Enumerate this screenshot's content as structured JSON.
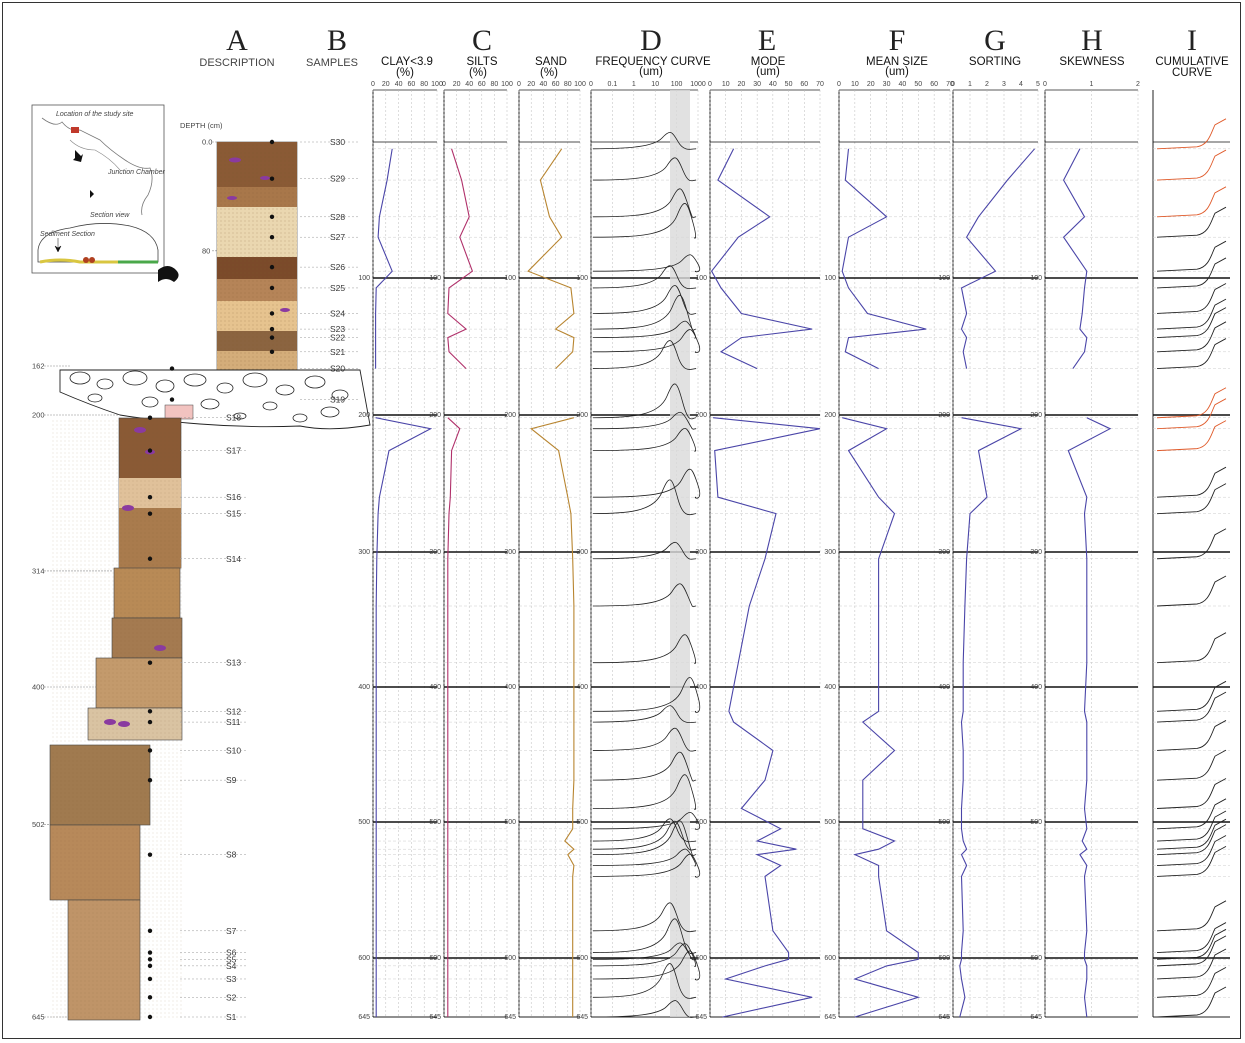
{
  "columns": {
    "A": {
      "letter": "A",
      "title": "DESCRIPTION"
    },
    "B": {
      "letter": "B",
      "title": "SAMPLES"
    },
    "C0": {
      "title1": "CLAY<3.9",
      "title2": "(%)"
    },
    "C": {
      "letter": "C",
      "title1": "SILTS",
      "title2": "(%)"
    },
    "C2": {
      "title1": "SAND",
      "title2": "(%)"
    },
    "D": {
      "letter": "D",
      "title1": "FREQUENCY CURVE",
      "title2": "(um)"
    },
    "E": {
      "letter": "E",
      "title1": "MODE",
      "title2": "(um)"
    },
    "F": {
      "letter": "F",
      "title1": "MEAN SIZE",
      "title2": "(um)"
    },
    "G": {
      "letter": "G",
      "title1": "SORTING"
    },
    "H": {
      "letter": "H",
      "title1": "SKEWNESS"
    },
    "I": {
      "letter": "I",
      "title1": "CUMULATIVE",
      "title2": "CURVE"
    }
  },
  "axis_ticks": {
    "percent": [
      "0",
      "20",
      "40",
      "60",
      "80",
      "100"
    ],
    "freq": [
      "0",
      "0.1",
      "1",
      "10",
      "100",
      "1000"
    ],
    "um": [
      "0",
      "10",
      "20",
      "30",
      "40",
      "50",
      "60",
      "70"
    ],
    "sorting": [
      "0",
      "1",
      "2",
      "3",
      "4",
      "5"
    ],
    "skewness": [
      "0",
      "1",
      "2"
    ]
  },
  "depth_label": "DEPTH (cm)",
  "depth_marks": [
    "0.0",
    "80",
    "162",
    "200",
    "314",
    "400",
    "502",
    "645"
  ],
  "plot_depth_ticks": [
    "100",
    "200",
    "300",
    "400",
    "500",
    "600",
    "645"
  ],
  "inset": {
    "location_label": "Location of the study site",
    "junction_label": "Junction Chamber",
    "section_view_label": "Section view",
    "sediment_label": "Sediment Section"
  },
  "samples": [
    {
      "name": "S30",
      "depth": 0
    },
    {
      "name": "S29",
      "depth": 27
    },
    {
      "name": "S28",
      "depth": 55
    },
    {
      "name": "S27",
      "depth": 70
    },
    {
      "name": "S26",
      "depth": 92
    },
    {
      "name": "S25",
      "depth": 107
    },
    {
      "name": "S24",
      "depth": 125
    },
    {
      "name": "S23",
      "depth": 136
    },
    {
      "name": "S22",
      "depth": 142
    },
    {
      "name": "S21",
      "depth": 152
    },
    {
      "name": "S20",
      "depth": 164
    },
    {
      "name": "S19",
      "depth": 188
    },
    {
      "name": "S18",
      "depth": 202
    },
    {
      "name": "S17",
      "depth": 226
    },
    {
      "name": "S16",
      "depth": 260
    },
    {
      "name": "S15",
      "depth": 272
    },
    {
      "name": "S14",
      "depth": 305
    },
    {
      "name": "S13",
      "depth": 382
    },
    {
      "name": "S12",
      "depth": 418
    },
    {
      "name": "S11",
      "depth": 426
    },
    {
      "name": "S10",
      "depth": 447
    },
    {
      "name": "S9",
      "depth": 469
    },
    {
      "name": "S8",
      "depth": 524
    },
    {
      "name": "S7",
      "depth": 580
    },
    {
      "name": "S6",
      "depth": 596
    },
    {
      "name": "S5",
      "depth": 601
    },
    {
      "name": "S4",
      "depth": 606
    },
    {
      "name": "S3",
      "depth": 616
    },
    {
      "name": "S2",
      "depth": 630
    },
    {
      "name": "S1",
      "depth": 645
    }
  ],
  "chart_data": {
    "type": "line",
    "depth_axis": {
      "label": "DEPTH (cm)",
      "range": [
        0,
        645
      ],
      "inverted": true
    },
    "depths": [
      5,
      28,
      55,
      70,
      95,
      107,
      125,
      136,
      142,
      152,
      164,
      202,
      210,
      226,
      260,
      272,
      305,
      340,
      382,
      418,
      426,
      447,
      469,
      490,
      505,
      514,
      520,
      524,
      532,
      540,
      580,
      596,
      601,
      606,
      616,
      630,
      645
    ],
    "series": [
      {
        "name": "CLAY<3.9",
        "unit": "%",
        "range": [
          0,
          100
        ],
        "color": "#4a45a8",
        "values": [
          30,
          22,
          10,
          8,
          30,
          5,
          4,
          4,
          4,
          4,
          4,
          4,
          90,
          25,
          10,
          8,
          6,
          5,
          5,
          5,
          5,
          5,
          5,
          5,
          5,
          5,
          5,
          5,
          5,
          5,
          5,
          5,
          5,
          5,
          5,
          5,
          5
        ]
      },
      {
        "name": "SILTS",
        "unit": "%",
        "range": [
          0,
          100
        ],
        "color": "#b0306a",
        "values": [
          12,
          28,
          40,
          25,
          45,
          8,
          6,
          35,
          6,
          8,
          35,
          6,
          25,
          12,
          10,
          8,
          6,
          6,
          6,
          6,
          6,
          6,
          6,
          6,
          6,
          6,
          6,
          6,
          6,
          6,
          6,
          6,
          6,
          6,
          6,
          6,
          6
        ]
      },
      {
        "name": "SAND",
        "unit": "%",
        "range": [
          0,
          100
        ],
        "color": "#b88530",
        "values": [
          70,
          35,
          50,
          70,
          15,
          85,
          90,
          60,
          90,
          88,
          60,
          90,
          20,
          65,
          80,
          85,
          88,
          90,
          90,
          90,
          90,
          90,
          90,
          88,
          88,
          75,
          90,
          80,
          90,
          88,
          88,
          88,
          88,
          88,
          88,
          88,
          88
        ]
      },
      {
        "name": "MODE",
        "unit": "um",
        "range": [
          0,
          700
        ],
        "color": "#4a45a8",
        "values": [
          150,
          50,
          380,
          180,
          10,
          70,
          200,
          650,
          200,
          70,
          300,
          20,
          700,
          30,
          50,
          420,
          350,
          250,
          180,
          120,
          150,
          400,
          350,
          200,
          450,
          300,
          550,
          300,
          450,
          350,
          400,
          500,
          500,
          350,
          100,
          650,
          80
        ]
      },
      {
        "name": "MEAN SIZE",
        "unit": "um",
        "range": [
          0,
          700
        ],
        "color": "#4a45a8",
        "values": [
          60,
          40,
          300,
          60,
          20,
          60,
          180,
          550,
          60,
          40,
          250,
          20,
          300,
          60,
          250,
          350,
          250,
          250,
          250,
          250,
          150,
          350,
          150,
          150,
          150,
          350,
          250,
          100,
          250,
          250,
          300,
          500,
          500,
          300,
          100,
          500,
          100
        ]
      },
      {
        "name": "SORTING",
        "unit": "",
        "range": [
          0,
          5
        ],
        "color": "#4a45a8",
        "values": [
          4.8,
          3.2,
          1.5,
          0.8,
          2.5,
          0.5,
          0.8,
          0.5,
          0.8,
          0.6,
          0.8,
          0.5,
          4.0,
          1.5,
          2.0,
          1.0,
          0.8,
          0.7,
          0.6,
          0.6,
          0.5,
          0.6,
          0.6,
          0.5,
          0.5,
          0.6,
          0.8,
          0.5,
          0.8,
          0.5,
          0.6,
          0.5,
          0.5,
          0.4,
          0.5,
          0.7,
          0.4
        ]
      },
      {
        "name": "SKEWNESS",
        "unit": "",
        "range": [
          0,
          2
        ],
        "color": "#4a45a8",
        "values": [
          0.75,
          0.4,
          0.85,
          0.4,
          0.9,
          0.85,
          0.8,
          0.75,
          0.9,
          0.85,
          0.6,
          0.9,
          1.4,
          0.5,
          0.9,
          0.85,
          0.9,
          0.9,
          0.9,
          0.85,
          0.9,
          0.9,
          0.9,
          0.85,
          0.9,
          0.8,
          0.9,
          0.75,
          0.9,
          0.85,
          0.9,
          0.85,
          0.85,
          0.9,
          0.9,
          0.85,
          0.9
        ]
      }
    ]
  }
}
